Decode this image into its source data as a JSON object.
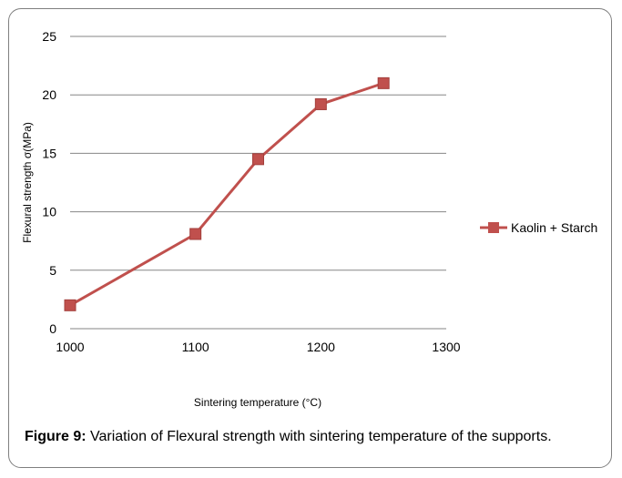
{
  "caption": {
    "label": "Figure 9:",
    "text": " Variation of Flexural strength with sintering temperature of the supports."
  },
  "chart_data": {
    "type": "line",
    "xlabel": "Sintering temperature (°C)",
    "ylabel": "Flexural strength σ(MPa)",
    "xlim": [
      1000,
      1300
    ],
    "ylim": [
      0,
      25
    ],
    "xticks": [
      "1000",
      "1100",
      "1200",
      "1300"
    ],
    "yticks": [
      "0",
      "5",
      "10",
      "15",
      "20",
      "25"
    ],
    "grid": "horizontal",
    "legend_position": "right",
    "series": [
      {
        "name": "Kaolin + Starch",
        "color": "#c0504d",
        "marker": "square",
        "x": [
          1000,
          1100,
          1150,
          1200,
          1250
        ],
        "y": [
          2,
          8.1,
          14.5,
          19.2,
          21
        ]
      }
    ]
  }
}
